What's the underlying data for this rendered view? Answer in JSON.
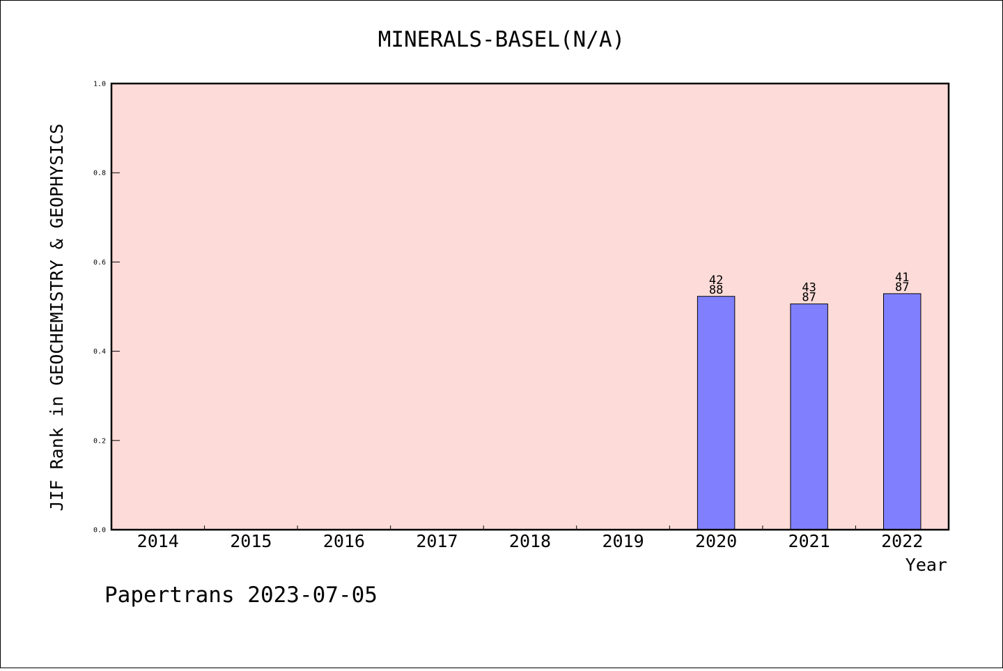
{
  "chart_data": {
    "type": "bar",
    "title": "MINERALS-BASEL(N/A)",
    "xlabel": "Year",
    "ylabel": "JIF Rank in GEOCHEMISTRY & GEOPHYSICS",
    "ylim": [
      0.0,
      1.0
    ],
    "yticks": [
      "0.0",
      "0.2",
      "0.4",
      "0.6",
      "0.8",
      "1.0"
    ],
    "ytick_values": [
      0.0,
      0.2,
      0.4,
      0.6,
      0.8,
      1.0
    ],
    "categories": [
      "2014",
      "2015",
      "2016",
      "2017",
      "2018",
      "2019",
      "2020",
      "2021",
      "2022"
    ],
    "values": [
      null,
      null,
      null,
      null,
      null,
      null,
      0.523,
      0.506,
      0.529
    ],
    "bar_labels": [
      null,
      null,
      null,
      null,
      null,
      null,
      [
        "42",
        "88"
      ],
      [
        "43",
        "87"
      ],
      [
        "41",
        "87"
      ]
    ],
    "grid": false,
    "colors": {
      "plot_background": "#fddbd8",
      "bar_fill": "#8080ff",
      "bar_edge": "#000000"
    }
  },
  "footer": "Papertrans 2023-07-05"
}
